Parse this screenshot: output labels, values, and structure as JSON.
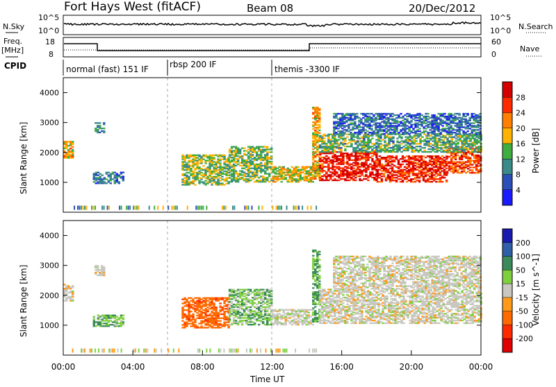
{
  "header": {
    "station": "Fort Hays West (fitACF)",
    "beam": "Beam 08",
    "date": "20/Dec/2012"
  },
  "left_labels": {
    "nsky": "N.Sky",
    "freq": "Freq.",
    "freq_unit": "[MHz]",
    "cpid": "CPID"
  },
  "right_labels": {
    "nsearch": "N.Search",
    "nave": "Nave"
  },
  "noise_axis": {
    "top": "10^5",
    "bottom": "10^0"
  },
  "freq_axis": {
    "top": "18",
    "bottom": "8"
  },
  "nave_axis": {
    "top": "60",
    "bottom": "0"
  },
  "cpid_segments": [
    {
      "label": "normal (fast) 151 IF",
      "start_hour": 0
    },
    {
      "label": "rbsp 200 IF",
      "start_hour": 6
    },
    {
      "label": "themis -3300 IF",
      "start_hour": 12
    }
  ],
  "chart_data": [
    {
      "type": "heatmap",
      "panel": "power",
      "ylabel": "Slant Range [km]",
      "xlabel": "",
      "xlim_hours": [
        0,
        24
      ],
      "ylim": [
        0,
        4500
      ],
      "yticks": [
        1000,
        2000,
        3000,
        4000
      ],
      "colorbar": {
        "label": "Power [dB]",
        "ticks": [
          "4",
          "8",
          "12",
          "16",
          "20",
          "24",
          "28"
        ],
        "colors": [
          "#1a1aff",
          "#2b4fb8",
          "#3a8a8a",
          "#3fae3f",
          "#ffb300",
          "#ff7f00",
          "#ff2a00",
          "#d40000"
        ],
        "range": [
          0,
          30
        ]
      },
      "regions": [
        {
          "t0": 0.0,
          "t1": 0.5,
          "r0": 1800,
          "r1": 2350,
          "value": 18
        },
        {
          "t0": 1.8,
          "t1": 2.3,
          "r0": 2650,
          "r1": 3000,
          "value": 9
        },
        {
          "t0": 1.7,
          "t1": 3.5,
          "r0": 950,
          "r1": 1350,
          "value": 8
        },
        {
          "t0": 6.8,
          "t1": 9.5,
          "r0": 900,
          "r1": 1900,
          "value": 14
        },
        {
          "t0": 9.5,
          "t1": 12.0,
          "r0": 1000,
          "r1": 2200,
          "value": 13
        },
        {
          "t0": 12.0,
          "t1": 14.3,
          "r0": 1000,
          "r1": 1500,
          "value": 16
        },
        {
          "t0": 14.3,
          "t1": 14.7,
          "r0": 1100,
          "r1": 3500,
          "value": 18
        },
        {
          "t0": 14.7,
          "t1": 18.0,
          "r0": 1050,
          "r1": 2000,
          "value": 27
        },
        {
          "t0": 18.0,
          "t1": 22.0,
          "r0": 1000,
          "r1": 1900,
          "value": 26
        },
        {
          "t0": 22.0,
          "t1": 24.0,
          "r0": 1300,
          "r1": 2200,
          "value": 24
        },
        {
          "t0": 14.7,
          "t1": 24.0,
          "r0": 2000,
          "r1": 2600,
          "value": 12
        },
        {
          "t0": 15.5,
          "t1": 24.0,
          "r0": 2600,
          "r1": 3300,
          "value": 7
        }
      ]
    },
    {
      "type": "heatmap",
      "panel": "velocity",
      "ylabel": "Slant Range [km]",
      "xlabel": "Time UT",
      "xlim_hours": [
        0,
        24
      ],
      "ylim": [
        0,
        4500
      ],
      "yticks": [
        1000,
        2000,
        3000,
        4000
      ],
      "xticks": [
        "00:00",
        "04:00",
        "08:00",
        "12:00",
        "16:00",
        "20:00",
        "00:00"
      ],
      "colorbar": {
        "label": "Velocity [m s^-1]",
        "ticks": [
          "200",
          "100",
          "50",
          "15",
          "-15",
          "-50",
          "-100",
          "-200"
        ],
        "colors": [
          "#1a1ab0",
          "#2f5fa8",
          "#3c8a5a",
          "#7fd03f",
          "#c8c8c0",
          "#ff9a1a",
          "#ff6a00",
          "#ff2a00",
          "#e00000"
        ]
      },
      "regions": [
        {
          "t0": 0.0,
          "t1": 0.5,
          "r0": 1800,
          "r1": 2350,
          "value": 0
        },
        {
          "t0": 1.8,
          "t1": 2.3,
          "r0": 2650,
          "r1": 3000,
          "value": 0
        },
        {
          "t0": 1.7,
          "t1": 3.5,
          "r0": 950,
          "r1": 1350,
          "value": 30
        },
        {
          "t0": 6.8,
          "t1": 9.5,
          "r0": 900,
          "r1": 1900,
          "value": -60
        },
        {
          "t0": 9.5,
          "t1": 12.0,
          "r0": 1000,
          "r1": 2200,
          "value": 25
        },
        {
          "t0": 12.0,
          "t1": 14.3,
          "r0": 1000,
          "r1": 1500,
          "value": 0
        },
        {
          "t0": 14.3,
          "t1": 14.7,
          "r0": 1100,
          "r1": 3500,
          "value": 35
        },
        {
          "t0": 14.7,
          "t1": 24.0,
          "r0": 1050,
          "r1": 2200,
          "value": 0
        },
        {
          "t0": 15.5,
          "t1": 24.0,
          "r0": 2200,
          "r1": 3300,
          "value": 0
        }
      ]
    }
  ]
}
